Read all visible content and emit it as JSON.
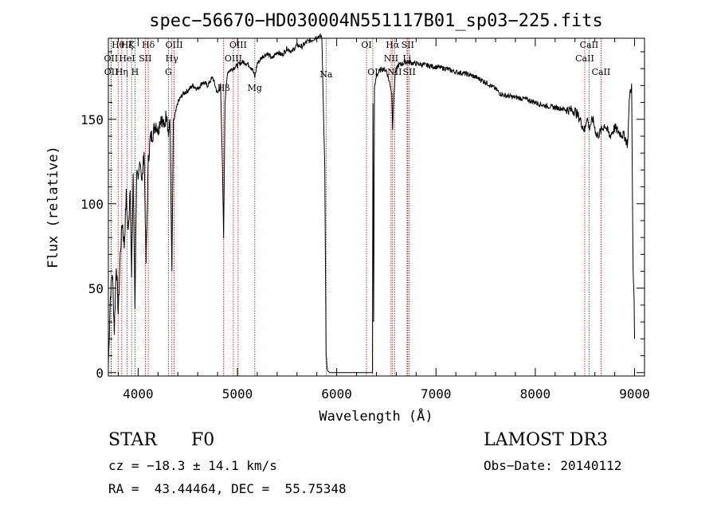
{
  "chart_data": {
    "type": "line",
    "title": "spec−56670−HD030004N551117B01_sp03−225.fits",
    "xlabel": "Wavelength (Å)",
    "ylabel": "Flux (relative)",
    "xlim": [
      3700,
      9100
    ],
    "ylim": [
      -2,
      198
    ],
    "xticks": [
      4000,
      5000,
      6000,
      7000,
      8000,
      9000
    ],
    "xtick_labels": [
      "4000",
      "5000",
      "6000",
      "7000",
      "8000",
      "9000"
    ],
    "yticks": [
      0,
      50,
      100,
      150
    ],
    "ytick_labels": [
      "0",
      "50",
      "100",
      "150"
    ],
    "spectral_lines": [
      {
        "label": "Hθ",
        "wavelength": 3798,
        "row": 0
      },
      {
        "label": "OII",
        "wavelength": 3727,
        "row": 1
      },
      {
        "label": "OII",
        "wavelength": 3729,
        "row": 2
      },
      {
        "label": "Hζ",
        "wavelength": 3889,
        "row": 0
      },
      {
        "label": "HeI",
        "wavelength": 3889,
        "row": 1
      },
      {
        "label": "Hη",
        "wavelength": 3835,
        "row": 2
      },
      {
        "label": "K",
        "wavelength": 3934,
        "row": 0
      },
      {
        "label": "H",
        "wavelength": 3968,
        "row": 2
      },
      {
        "label": "SII",
        "wavelength": 4072,
        "row": 1
      },
      {
        "label": "Hδ",
        "wavelength": 4102,
        "row": 0
      },
      {
        "label": "OIII",
        "wavelength": 4363,
        "row": 0
      },
      {
        "label": "Hγ",
        "wavelength": 4340,
        "row": 1
      },
      {
        "label": "G",
        "wavelength": 4305,
        "row": 2
      },
      {
        "label": "OIII",
        "wavelength": 5007,
        "row": 0
      },
      {
        "label": "OIII",
        "wavelength": 4959,
        "row": 1
      },
      {
        "label": "Hβ",
        "wavelength": 4861,
        "row": 2
      },
      {
        "label": "Mg",
        "wavelength": 5175,
        "row": 2
      },
      {
        "label": "Na",
        "wavelength": 5893,
        "row": 1
      },
      {
        "label": "OI",
        "wavelength": 6300,
        "row": 0
      },
      {
        "label": "OI",
        "wavelength": 6363,
        "row": 2
      },
      {
        "label": "Hα",
        "wavelength": 6563,
        "row": 0
      },
      {
        "label": "SII",
        "wavelength": 6716,
        "row": 0
      },
      {
        "label": "NII",
        "wavelength": 6548,
        "row": 1
      },
      {
        "label": "Li",
        "wavelength": 6708,
        "row": 1
      },
      {
        "label": "NII",
        "wavelength": 6583,
        "row": 2
      },
      {
        "label": "SII",
        "wavelength": 6731,
        "row": 2
      },
      {
        "label": "CaII",
        "wavelength": 8542,
        "row": 0
      },
      {
        "label": "CaII",
        "wavelength": 8498,
        "row": 1
      },
      {
        "label": "CaII",
        "wavelength": 8662,
        "row": 2
      }
    ],
    "series": [
      {
        "name": "flux",
        "x": [
          3700,
          3720,
          3740,
          3760,
          3780,
          3800,
          3820,
          3840,
          3860,
          3880,
          3900,
          3920,
          3934,
          3950,
          3968,
          3985,
          4000,
          4020,
          4040,
          4060,
          4080,
          4102,
          4120,
          4150,
          4180,
          4200,
          4230,
          4260,
          4290,
          4305,
          4320,
          4340,
          4355,
          4370,
          4400,
          4450,
          4500,
          4550,
          4600,
          4650,
          4700,
          4750,
          4800,
          4830,
          4850,
          4861,
          4875,
          4900,
          4950,
          5000,
          5050,
          5100,
          5150,
          5175,
          5200,
          5250,
          5300,
          5350,
          5400,
          5450,
          5500,
          5550,
          5600,
          5650,
          5700,
          5750,
          5800,
          5850,
          5880,
          5893,
          5905,
          5910,
          5930,
          6000,
          6100,
          6200,
          6300,
          6350,
          6360,
          6365,
          6372,
          6380,
          6400,
          6450,
          6500,
          6540,
          6555,
          6563,
          6572,
          6590,
          6620,
          6700,
          6800,
          6900,
          7000,
          7100,
          7200,
          7300,
          7400,
          7500,
          7600,
          7650,
          7700,
          7800,
          7900,
          8000,
          8100,
          8200,
          8300,
          8400,
          8450,
          8498,
          8520,
          8542,
          8580,
          8620,
          8662,
          8700,
          8750,
          8800,
          8850,
          8900,
          8930,
          8950,
          8970,
          8985,
          8995,
          9000
        ],
        "y": [
          5,
          45,
          60,
          25,
          65,
          35,
          70,
          90,
          75,
          105,
          82,
          112,
          55,
          118,
          40,
          120,
          110,
          128,
          112,
          132,
          65,
          125,
          138,
          142,
          148,
          143,
          152,
          145,
          155,
          140,
          150,
          60,
          148,
          152,
          160,
          165,
          167,
          170,
          168,
          172,
          170,
          175,
          165,
          170,
          120,
          80,
          160,
          178,
          180,
          182,
          184,
          183,
          180,
          175,
          183,
          187,
          189,
          186,
          190,
          188,
          192,
          190,
          194,
          193,
          196,
          197,
          199,
          199,
          120,
          10,
          2,
          1,
          0,
          0,
          0,
          0,
          0,
          0,
          0,
          160,
          30,
          168,
          176,
          180,
          179,
          170,
          165,
          145,
          160,
          178,
          182,
          184,
          183,
          182,
          181,
          180,
          178,
          177,
          175,
          172,
          168,
          165,
          164,
          163,
          162,
          160,
          158,
          157,
          156,
          155,
          150,
          143,
          152,
          145,
          150,
          140,
          143,
          147,
          140,
          145,
          142,
          140,
          135,
          165,
          170,
          60,
          45,
          20
        ]
      }
    ]
  },
  "info": {
    "object_type": "STAR",
    "subclass": "F0",
    "survey": "LAMOST DR3",
    "redshift": "cz = −18.3 ± 14.1 km/s",
    "obs_date": "Obs−Date: 20140112",
    "coords": "RA =  43.44464, DEC =  55.75348"
  }
}
